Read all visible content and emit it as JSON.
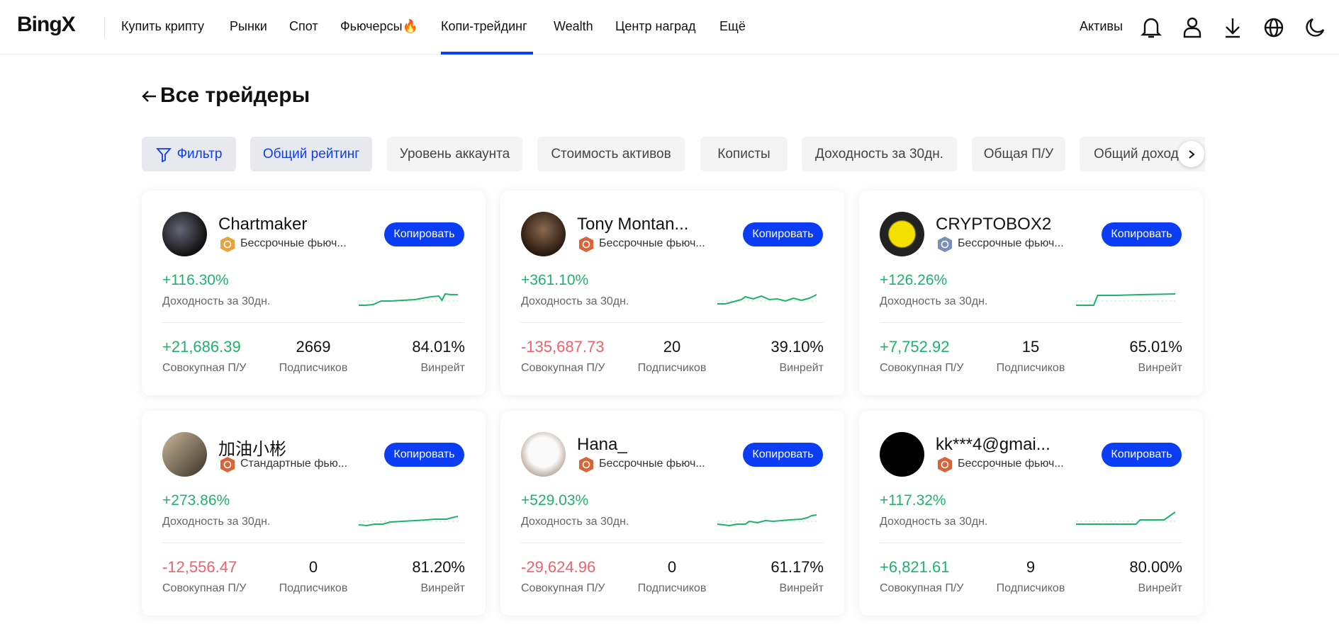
{
  "nav": {
    "logo": "BingX",
    "items": [
      "Купить крипту",
      "Рынки",
      "Спот",
      "Фьючерсы🔥",
      "Копи-трейдинг",
      "Wealth",
      "Центр наград",
      "Ещё"
    ],
    "assets": "Активы"
  },
  "page": {
    "title": "Все трейдеры",
    "filters": [
      "Фильтр",
      "Общий рейтинг",
      "Уровень аккаунта",
      "Стоимость активов",
      "Копиcты",
      "Доходность за 30дн.",
      "Общая П/У",
      "Общий доход"
    ]
  },
  "traders": [
    {
      "name": "Chartmaker",
      "badge": "Бессрочные фьюч...",
      "button": "Копировать",
      "roi": "+116.30%",
      "roi_label": "Доходность за 30дн.",
      "pnl": "+21,686.39",
      "pnl_label": "Совокупная П/У",
      "followers": "2669",
      "followers_label": "Подписчиков",
      "winrate": "84.01%",
      "winrate_label": "Винрейт"
    },
    {
      "name": "Tony Montan...",
      "badge": "Бессрочные фьюч...",
      "button": "Копировать",
      "roi": "+361.10%",
      "roi_label": "Доходность за 30дн.",
      "pnl": "-135,687.73",
      "pnl_label": "Совокупная П/У",
      "followers": "20",
      "followers_label": "Подписчиков",
      "winrate": "39.10%",
      "winrate_label": "Винрейт"
    },
    {
      "name": "CRYPTOBOX2",
      "badge": "Бессрочные фьюч...",
      "button": "Копировать",
      "roi": "+126.26%",
      "roi_label": "Доходность за 30дн.",
      "pnl": "+7,752.92",
      "pnl_label": "Совокупная П/У",
      "followers": "15",
      "followers_label": "Подписчиков",
      "winrate": "65.01%",
      "winrate_label": "Винрейт"
    },
    {
      "name": "加油小彬",
      "badge": "Стандартные фью...",
      "button": "Копировать",
      "roi": "+273.86%",
      "roi_label": "Доходность за 30дн.",
      "pnl": "-12,556.47",
      "pnl_label": "Совокупная П/У",
      "followers": "0",
      "followers_label": "Подписчиков",
      "winrate": "81.20%",
      "winrate_label": "Винрейт"
    },
    {
      "name": "Hana_",
      "badge": "Бессрочные фьюч...",
      "button": "Копировать",
      "roi": "+529.03%",
      "roi_label": "Доходность за 30дн.",
      "pnl": "-29,624.96",
      "pnl_label": "Совокупная П/У",
      "followers": "0",
      "followers_label": "Подписчиков",
      "winrate": "61.17%",
      "winrate_label": "Винрейт"
    },
    {
      "name": "kk***4@gmai...",
      "badge": "Бессрочные фьюч...",
      "button": "Копировать",
      "roi": "+117.32%",
      "roi_label": "Доходность за 30дн.",
      "pnl": "+6,821.61",
      "pnl_label": "Совокупная П/У",
      "followers": "9",
      "followers_label": "Подписчиков",
      "winrate": "80.00%",
      "winrate_label": "Винрейт"
    }
  ]
}
